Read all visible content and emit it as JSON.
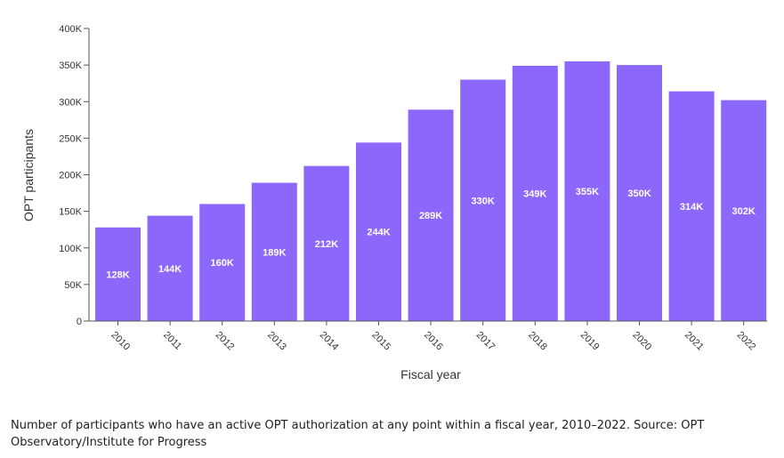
{
  "chart_data": {
    "type": "bar",
    "categories": [
      "2010",
      "2011",
      "2012",
      "2013",
      "2014",
      "2015",
      "2016",
      "2017",
      "2018",
      "2019",
      "2020",
      "2021",
      "2022"
    ],
    "values": [
      128,
      144,
      160,
      189,
      212,
      244,
      289,
      330,
      349,
      355,
      350,
      314,
      302
    ],
    "value_labels": [
      "128K",
      "144K",
      "160K",
      "189K",
      "212K",
      "244K",
      "289K",
      "330K",
      "349K",
      "355K",
      "350K",
      "314K",
      "302K"
    ],
    "unit": "thousands",
    "xlabel": "Fiscal year",
    "ylabel": "OPT participants",
    "ylim": [
      0,
      400
    ],
    "yticks": [
      0,
      50,
      100,
      150,
      200,
      250,
      300,
      350,
      400
    ],
    "ytick_labels": [
      "0",
      "50K",
      "100K",
      "150K",
      "200K",
      "250K",
      "300K",
      "350K",
      "400K"
    ],
    "bar_color": "#8b68fb",
    "grid": false
  },
  "caption": "Number of participants who have an active OPT authorization at any point within a fiscal year, 2010–2022. Source: OPT Observatory/Institute for Progress"
}
